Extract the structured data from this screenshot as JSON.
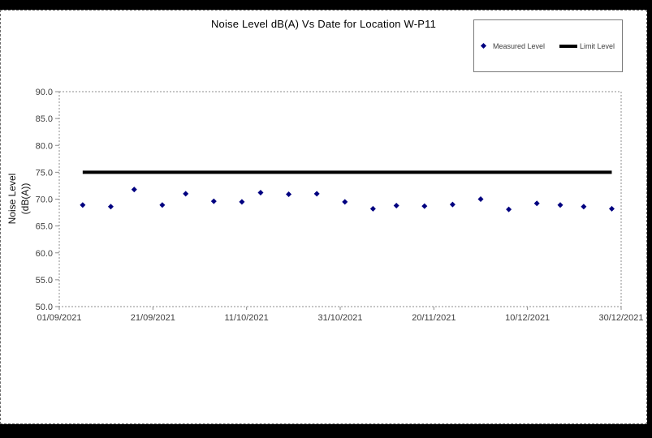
{
  "chart_data": {
    "type": "scatter",
    "title": "Noise Level dB(A) Vs Date for Location W-P11",
    "xlabel": "",
    "ylabel_line1": "Noise Level",
    "ylabel_line2": "(dB(A))",
    "ylim": [
      50.0,
      90.0
    ],
    "ytick_interval": 5.0,
    "ytick_labels": [
      "90.0",
      "85.0",
      "80.0",
      "75.0",
      "70.0",
      "65.0",
      "60.0",
      "55.0",
      "50.0"
    ],
    "xtick_labels": [
      "01/09/2021",
      "21/09/2021",
      "11/10/2021",
      "31/10/2021",
      "20/11/2021",
      "10/12/2021",
      "30/12/2021"
    ],
    "x_axis_start_date": "01/09/2021",
    "x_span_days": 120,
    "xtick_days": [
      0,
      20,
      40,
      60,
      80,
      100,
      120
    ],
    "grid": false,
    "legend": {
      "position": "top-right",
      "entries": [
        {
          "label": "Measured Level",
          "marker": "diamond",
          "color": "#000080"
        },
        {
          "label": "Limit Level",
          "marker": "line",
          "color": "#000000"
        }
      ]
    },
    "series": [
      {
        "name": "Measured Level",
        "type": "scatter",
        "marker": "diamond",
        "color": "#000080",
        "x_days": [
          5,
          11,
          16,
          22,
          27,
          33,
          39,
          43,
          49,
          55,
          61,
          67,
          72,
          78,
          84,
          90,
          96,
          102,
          107,
          112,
          118
        ],
        "x_dates": [
          "06/09/2021",
          "12/09/2021",
          "17/09/2021",
          "23/09/2021",
          "28/09/2021",
          "04/10/2021",
          "10/10/2021",
          "14/10/2021",
          "20/10/2021",
          "26/10/2021",
          "01/11/2021",
          "07/11/2021",
          "12/11/2021",
          "18/11/2021",
          "24/11/2021",
          "30/11/2021",
          "06/12/2021",
          "12/12/2021",
          "17/12/2021",
          "22/12/2021",
          "28/12/2021"
        ],
        "values": [
          68.9,
          68.6,
          71.8,
          68.9,
          71.0,
          69.6,
          69.5,
          71.2,
          70.9,
          71.0,
          69.5,
          68.2,
          68.8,
          68.7,
          69.0,
          70.0,
          68.1,
          69.2,
          68.9,
          68.6,
          68.2
        ]
      },
      {
        "name": "Limit Level",
        "type": "line",
        "color": "#000000",
        "stroke_width": 4,
        "value": 75.0,
        "x_days_span": [
          5,
          118
        ]
      }
    ],
    "axis_colors": {
      "tick_text": "#404040",
      "plot_border": "#8c8c8c"
    }
  }
}
